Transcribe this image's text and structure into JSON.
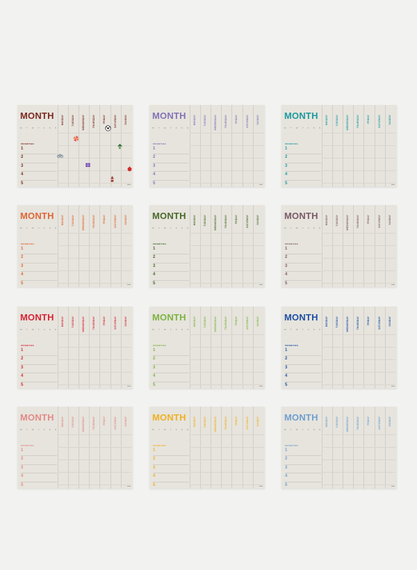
{
  "cards": [
    {
      "month_title": "MONTH",
      "color": "#7b2a22",
      "priorities_label": "PRIORITIES",
      "has_stickers": true
    },
    {
      "month_title": "MONTH",
      "color": "#8273b6",
      "priorities_label": "PRIORITIES",
      "has_stickers": false
    },
    {
      "month_title": "MONTH",
      "color": "#1c9aa0",
      "priorities_label": "PRIORITIES",
      "has_stickers": false
    },
    {
      "month_title": "MONTH",
      "color": "#e06536",
      "priorities_label": "PRIORITIES",
      "has_stickers": false
    },
    {
      "month_title": "MONTH",
      "color": "#4a6a28",
      "priorities_label": "PRIORITIES",
      "has_stickers": false
    },
    {
      "month_title": "MONTH",
      "color": "#7a5a68",
      "priorities_label": "PRIORITIES",
      "has_stickers": false
    },
    {
      "month_title": "MONTH",
      "color": "#d72433",
      "priorities_label": "PRIORITIES",
      "has_stickers": false
    },
    {
      "month_title": "MONTH",
      "color": "#7db343",
      "priorities_label": "PRIORITIES",
      "has_stickers": false
    },
    {
      "month_title": "MONTH",
      "color": "#1e50a3",
      "priorities_label": "PRIORITIES",
      "has_stickers": false
    },
    {
      "month_title": "MONTH",
      "color": "#e38a88",
      "priorities_label": "PRIORITIES",
      "has_stickers": false
    },
    {
      "month_title": "MONTH",
      "color": "#f0b022",
      "priorities_label": "PRIORITIES",
      "has_stickers": false
    },
    {
      "month_title": "MONTH",
      "color": "#6f9fd0",
      "priorities_label": "PRIORITIES",
      "has_stickers": false
    }
  ],
  "weekdays": [
    "MONDAY",
    "TUESDAY",
    "WEDNESDAY",
    "THURSDAY",
    "FRIDAY",
    "SATURDAY",
    "SUNDAY"
  ],
  "mini_calendar_rows": [
    [
      "M",
      "T",
      "W",
      "T",
      "F",
      "S",
      "S"
    ],
    [
      "·",
      "·",
      "·",
      "·",
      "·",
      "·",
      "·"
    ],
    [
      "·",
      "·",
      "·",
      "·",
      "·",
      "·",
      "·"
    ]
  ],
  "priority_numbers": [
    "1",
    "2",
    "3",
    "4",
    "5"
  ],
  "sticker_icons": [
    "pinwheel-icon",
    "soccer-ball-icon",
    "bicycle-icon",
    "house-icon",
    "gift-icon",
    "apple-icon",
    "bottle-icon"
  ]
}
